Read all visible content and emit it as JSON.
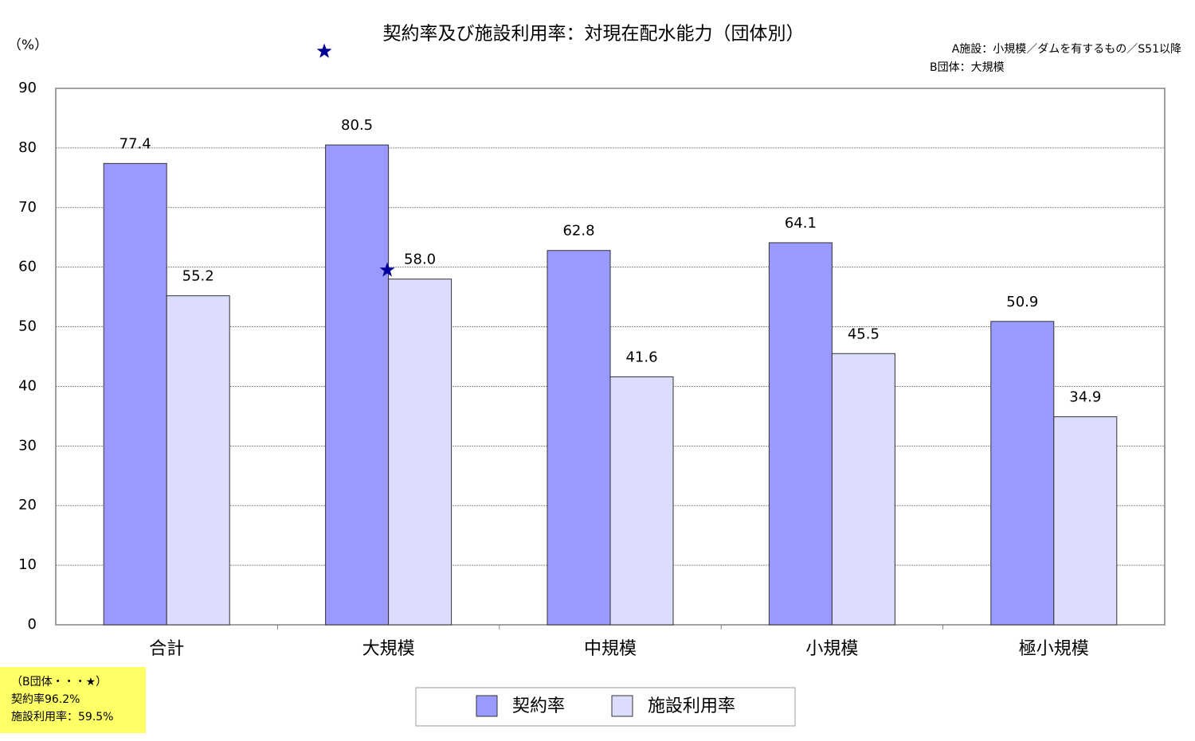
{
  "chart_data": {
    "type": "bar",
    "title": "契約率及び施設利用率：対現在配水能力（団体別）",
    "y_unit": "（%）",
    "annotations": [
      "A施設：小規模／ダムを有するもの／S51以降",
      "B団体：大規模"
    ],
    "categories": [
      "合計",
      "大規模",
      "中規模",
      "小規模",
      "極小規模"
    ],
    "series": [
      {
        "name": "契約率",
        "color": "#9999ff",
        "values": [
          77.4,
          80.5,
          62.8,
          64.1,
          50.9
        ],
        "value_labels": [
          "77.4",
          "80.5",
          "62.8",
          "64.1",
          "50.9"
        ]
      },
      {
        "name": "施設利用率",
        "color": "#dcdcfc",
        "values": [
          55.2,
          58,
          41.6,
          45.5,
          34.9
        ],
        "value_labels": [
          "55.2",
          "58.0",
          "41.6",
          "45.5",
          "34.9"
        ]
      }
    ],
    "markers": {
      "category": "大規模",
      "color": "#000099",
      "values": [
        96.2,
        59.5
      ]
    },
    "note": [
      "（B団体・・・★）",
      "契約率96.2%",
      "施設利用率：59.5%"
    ],
    "ylim": [
      0,
      90
    ],
    "yticks": [
      0,
      10,
      20,
      30,
      40,
      50,
      60,
      70,
      80,
      90
    ],
    "grid": true,
    "legend": "bottom"
  }
}
